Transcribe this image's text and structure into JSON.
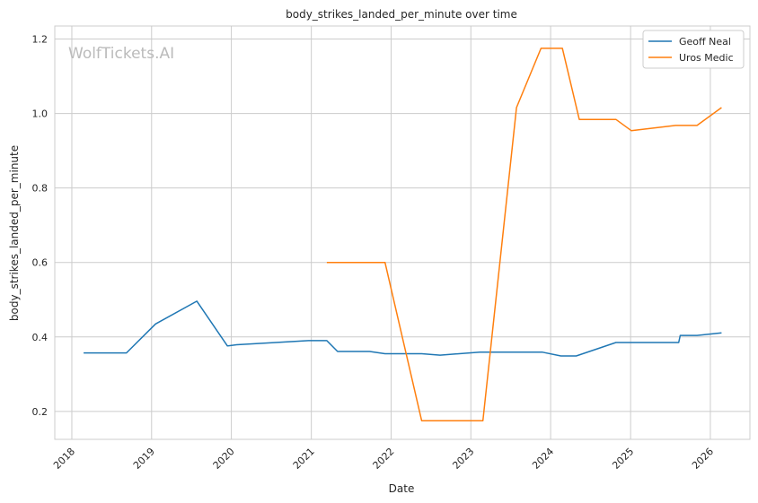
{
  "chart_data": {
    "type": "line",
    "title": "body_strikes_landed_per_minute over time",
    "xlabel": "Date",
    "ylabel": "body_strikes_landed_per_minute",
    "watermark": "WolfTickets.AI",
    "x_ticks": [
      "2018",
      "2019",
      "2020",
      "2021",
      "2022",
      "2023",
      "2024",
      "2025",
      "2026"
    ],
    "y_ticks": [
      "0.2",
      "0.4",
      "0.6",
      "0.8",
      "1.0",
      "1.2"
    ],
    "xlim": [
      "2017-10-15",
      "2026-07-01"
    ],
    "ylim": [
      0.125,
      1.235
    ],
    "grid": true,
    "legend_position": "top-right",
    "series": [
      {
        "name": "Geoff Neal",
        "color": "#1f77b4",
        "points": [
          [
            "2018-02-24",
            0.357
          ],
          [
            "2018-09-08",
            0.357
          ],
          [
            "2019-01-19",
            0.435
          ],
          [
            "2019-07-27",
            0.496
          ],
          [
            "2019-12-14",
            0.376
          ],
          [
            "2020-01-25",
            0.379
          ],
          [
            "2020-12-19",
            0.39
          ],
          [
            "2021-03-13",
            0.39
          ],
          [
            "2021-05-01",
            0.361
          ],
          [
            "2021-09-25",
            0.361
          ],
          [
            "2021-12-04",
            0.355
          ],
          [
            "2022-05-21",
            0.355
          ],
          [
            "2022-08-13",
            0.351
          ],
          [
            "2023-02-11",
            0.359
          ],
          [
            "2023-11-25",
            0.359
          ],
          [
            "2024-02-17",
            0.349
          ],
          [
            "2024-04-27",
            0.349
          ],
          [
            "2024-10-26",
            0.385
          ],
          [
            "2025-08-09",
            0.385
          ],
          [
            "2025-08-16",
            0.404
          ],
          [
            "2025-11-01",
            0.404
          ],
          [
            "2026-02-21",
            0.411
          ]
        ]
      },
      {
        "name": "Uros Medic",
        "color": "#ff7f0e",
        "points": [
          [
            "2021-03-13",
            0.6
          ],
          [
            "2021-12-04",
            0.6
          ],
          [
            "2022-05-21",
            0.175
          ],
          [
            "2023-02-25",
            0.175
          ],
          [
            "2023-07-29",
            1.016
          ],
          [
            "2023-11-18",
            1.175
          ],
          [
            "2024-02-24",
            1.175
          ],
          [
            "2024-05-11",
            0.984
          ],
          [
            "2024-10-26",
            0.984
          ],
          [
            "2025-01-04",
            0.954
          ],
          [
            "2025-07-26",
            0.968
          ],
          [
            "2025-11-01",
            0.968
          ],
          [
            "2026-02-21",
            1.016
          ]
        ]
      }
    ]
  }
}
